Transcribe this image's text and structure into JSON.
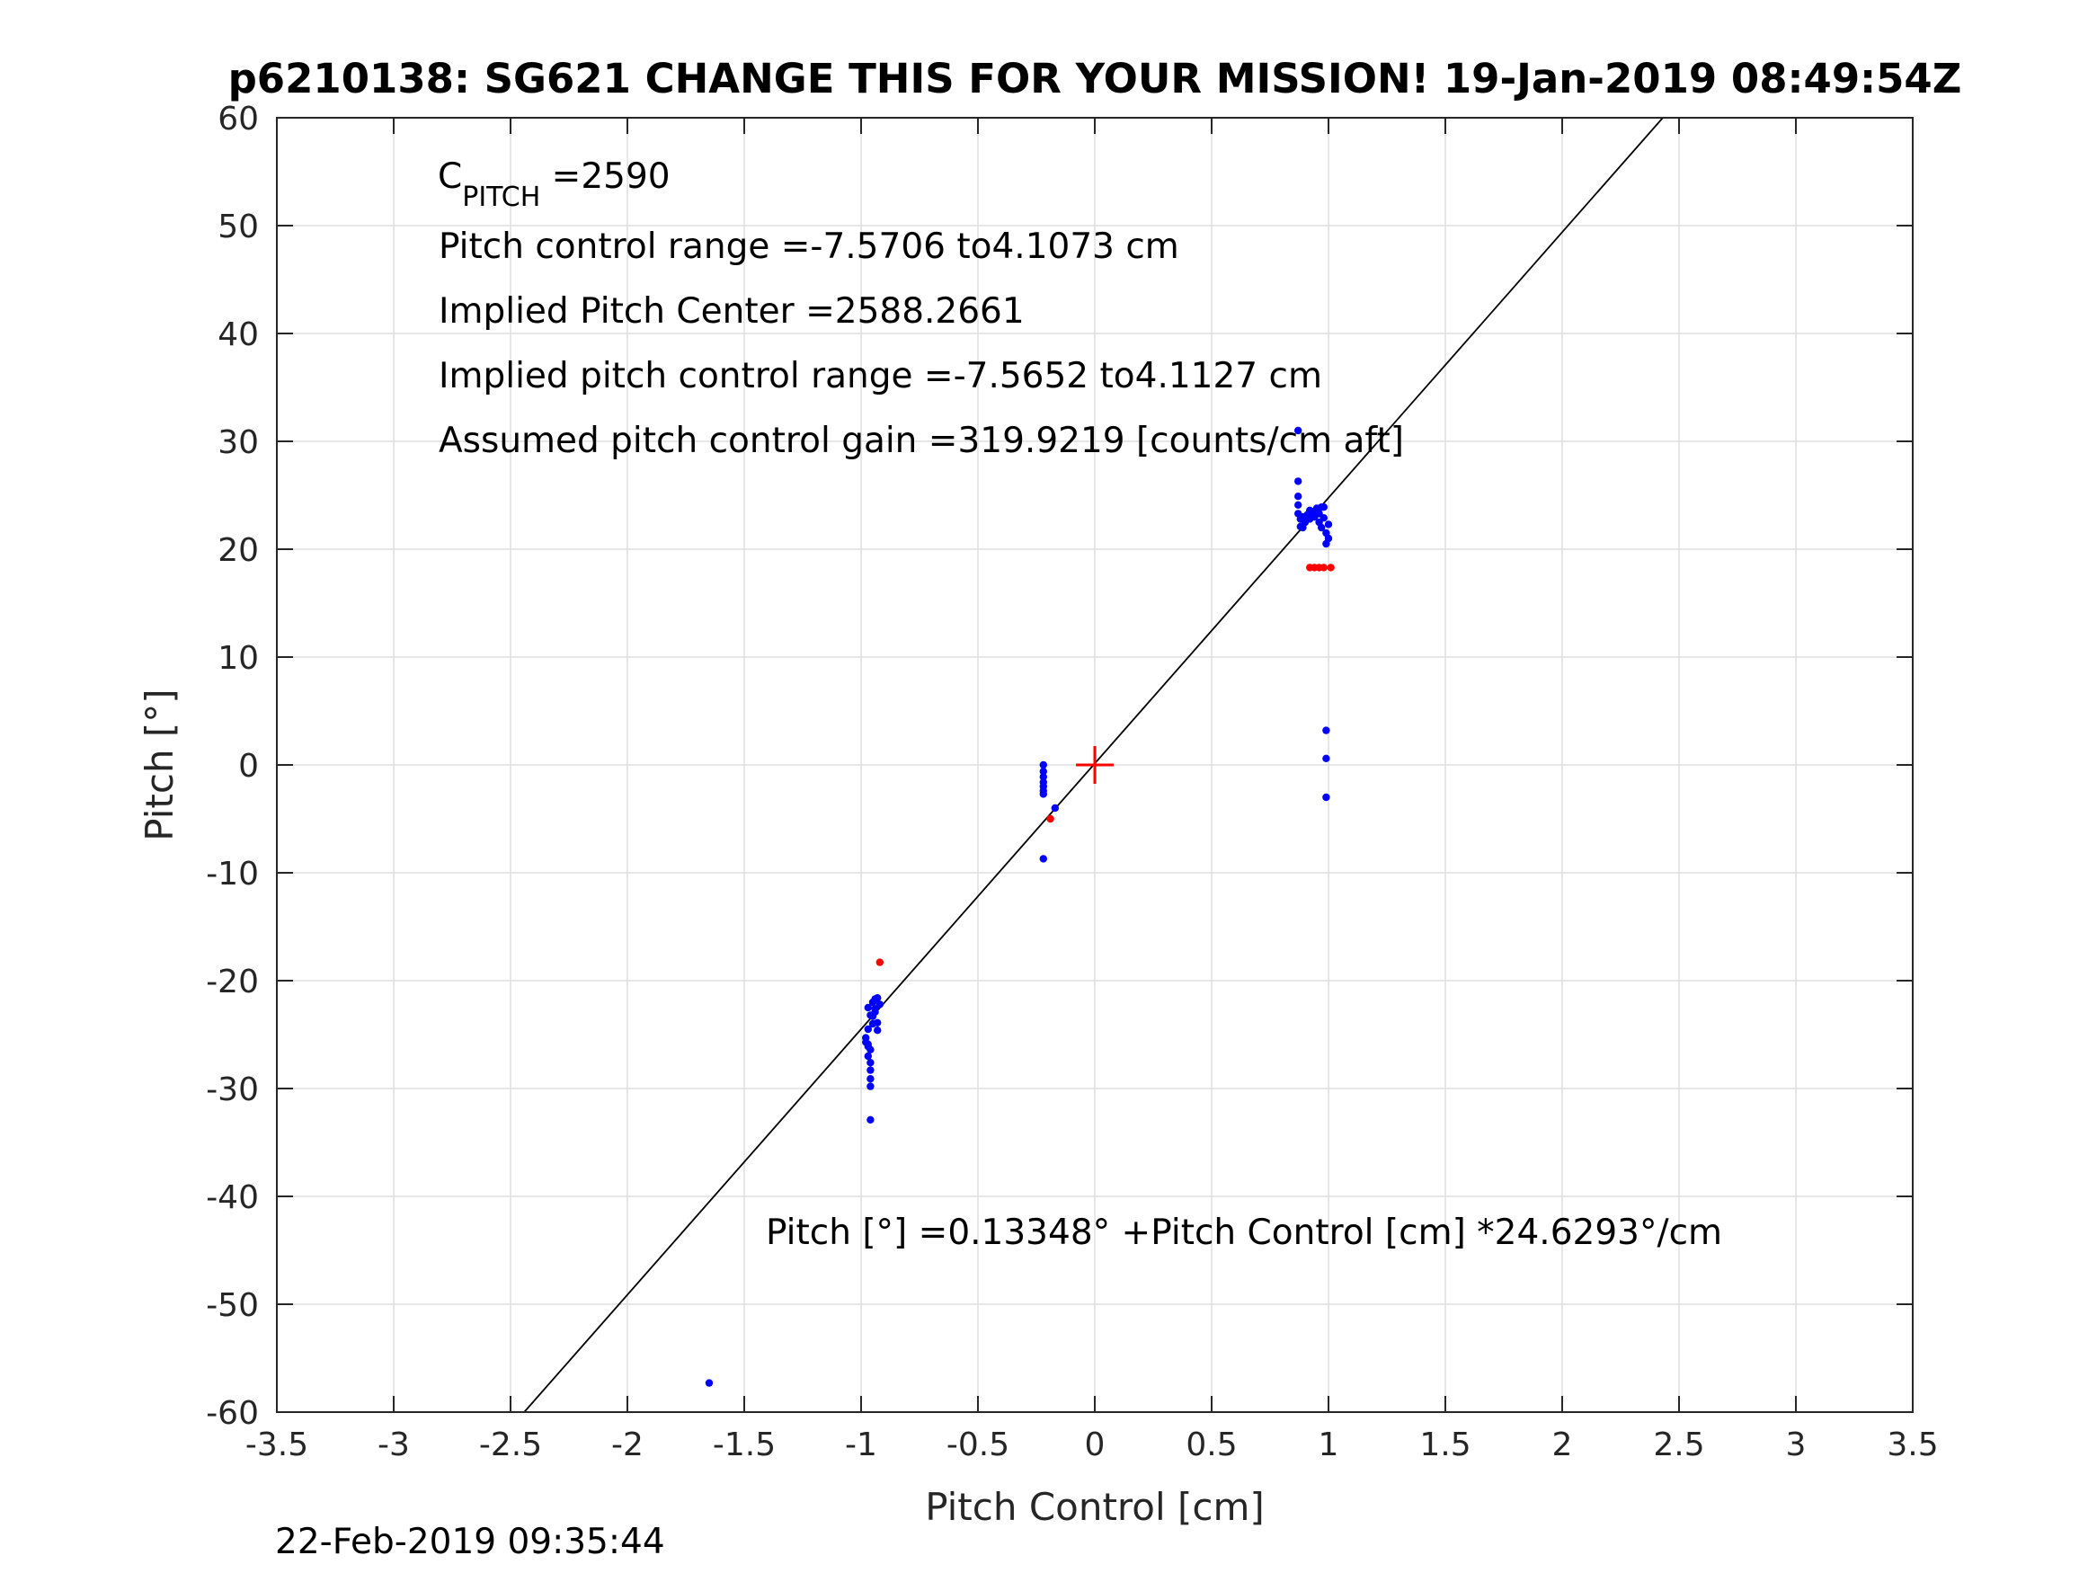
{
  "title": "p6210138: SG621 CHANGE THIS FOR YOUR MISSION! 19-Jan-2019 08:49:54Z",
  "timestamp": "22-Feb-2019 09:35:44",
  "annotations": {
    "cpitch_base": "C",
    "cpitch_sub": "PITCH",
    "cpitch_value": " =2590",
    "pitch_range": "Pitch control range =-7.5706 to4.1073 cm",
    "implied_center": "Implied Pitch Center =2588.2661",
    "implied_range": "Implied pitch control range =-7.5652 to4.1127 cm",
    "assumed_gain": "Assumed pitch control gain =319.9219 [counts/cm aft]",
    "fit_equation": "Pitch [°] =0.13348° +Pitch Control [cm] *24.6293°/cm"
  },
  "chart_data": {
    "type": "scatter",
    "xlabel": "Pitch Control [cm]",
    "ylabel": "Pitch [°]",
    "xlim": [
      -3.5,
      3.5
    ],
    "ylim": [
      -60,
      60
    ],
    "xticks": [
      -3.5,
      -3,
      -2.5,
      -2,
      -1.5,
      -1,
      -0.5,
      0,
      0.5,
      1,
      1.5,
      2,
      2.5,
      3,
      3.5
    ],
    "yticks": [
      -60,
      -50,
      -40,
      -30,
      -20,
      -10,
      0,
      10,
      20,
      30,
      40,
      50,
      60
    ],
    "grid": true,
    "colors": {
      "blue": "#0000ff",
      "red": "#ff0000",
      "fit": "#000000",
      "axes": "#262626",
      "grid": "#dfdfdf"
    },
    "fit_line": {
      "intercept": 0.13348,
      "slope": 24.6293
    },
    "center_marker": {
      "x": 0,
      "y": 0,
      "color": "#ff0000"
    },
    "series": [
      {
        "color": "#0000ff",
        "points": [
          [
            -1.65,
            -57.3
          ],
          [
            -0.97,
            -22.5
          ],
          [
            -0.96,
            -23.2
          ],
          [
            -0.97,
            -24.5
          ],
          [
            -0.98,
            -25.3
          ],
          [
            -0.97,
            -25.9
          ],
          [
            -0.96,
            -26.4
          ],
          [
            -0.97,
            -27.0
          ],
          [
            -0.96,
            -27.6
          ],
          [
            -0.96,
            -28.3
          ],
          [
            -0.96,
            -29.1
          ],
          [
            -0.96,
            -29.8
          ],
          [
            -0.96,
            -32.9
          ],
          [
            -0.95,
            -22.0
          ],
          [
            -0.94,
            -21.7
          ],
          [
            -0.93,
            -21.6
          ],
          [
            -0.94,
            -22.6
          ],
          [
            -0.95,
            -23.3
          ],
          [
            -0.93,
            -23.9
          ],
          [
            -0.93,
            -24.6
          ],
          [
            -0.94,
            -22.9
          ],
          [
            -0.92,
            -22.2
          ],
          [
            -0.95,
            -24.0
          ],
          [
            -0.97,
            -26.1
          ],
          [
            -0.98,
            -25.7
          ],
          [
            -0.22,
            0.0
          ],
          [
            -0.22,
            -0.6
          ],
          [
            -0.22,
            -1.1
          ],
          [
            -0.22,
            -1.6
          ],
          [
            -0.22,
            -2.0
          ],
          [
            -0.22,
            -2.4
          ],
          [
            -0.22,
            -2.7
          ],
          [
            -0.22,
            -8.7
          ],
          [
            -0.17,
            -4.0
          ],
          [
            0.87,
            31.0
          ],
          [
            0.87,
            26.3
          ],
          [
            0.87,
            24.9
          ],
          [
            0.87,
            24.1
          ],
          [
            0.87,
            23.3
          ],
          [
            0.88,
            22.8
          ],
          [
            0.88,
            22.1
          ],
          [
            0.89,
            23.0
          ],
          [
            0.9,
            22.5
          ],
          [
            0.91,
            23.2
          ],
          [
            0.92,
            22.8
          ],
          [
            0.93,
            23.5
          ],
          [
            0.94,
            23.0
          ],
          [
            0.95,
            23.8
          ],
          [
            0.96,
            23.3
          ],
          [
            0.96,
            22.5
          ],
          [
            0.97,
            22.0
          ],
          [
            0.98,
            23.9
          ],
          [
            0.98,
            22.9
          ],
          [
            0.99,
            21.5
          ],
          [
            0.99,
            20.5
          ],
          [
            1.0,
            21.0
          ],
          [
            1.0,
            22.3
          ],
          [
            0.97,
            23.9
          ],
          [
            0.92,
            23.6
          ],
          [
            0.89,
            22.0
          ],
          [
            0.99,
            3.2
          ],
          [
            0.99,
            0.6
          ],
          [
            0.99,
            -3.0
          ]
        ]
      },
      {
        "color": "#ff0000",
        "points": [
          [
            -0.92,
            -18.3
          ],
          [
            -0.19,
            -5.0
          ],
          [
            0.92,
            18.3
          ],
          [
            0.94,
            18.3
          ],
          [
            0.96,
            18.3
          ],
          [
            0.98,
            18.3
          ],
          [
            1.01,
            18.3
          ]
        ]
      }
    ]
  }
}
